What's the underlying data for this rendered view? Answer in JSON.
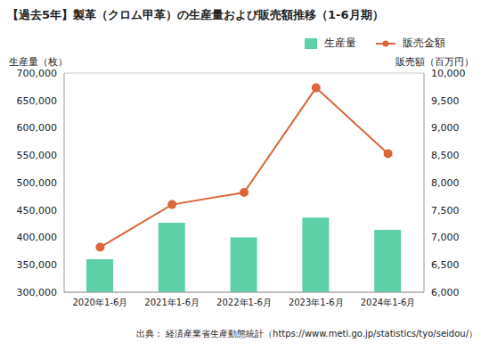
{
  "chart_data": {
    "type": "bar",
    "title": "【過去5年】製革（クロム甲革）の生産量および販売額推移（1-6月期）",
    "y_label": "生産量（枚）",
    "y2_label": "販売額（百万円）",
    "annotations": [
      "出典： 経済産業省生産動態統計（https://www.meti.go.jp/statistics/tyo/seidou/）"
    ],
    "categories": [
      "2020年1-6月",
      "2021年1-6月",
      "2022年1-6月",
      "2023年1-6月",
      "2024年1-6月"
    ],
    "series": [
      {
        "name": "生産量",
        "type": "bar",
        "color": "#5dd0a8",
        "values": [
          360000,
          427000,
          400000,
          436000,
          414000
        ]
      },
      {
        "name": "販売金額",
        "type": "line",
        "axis": "y2",
        "color": "#dc6539",
        "marker": "circle",
        "values": [
          6820,
          7600,
          7820,
          9730,
          8530
        ]
      }
    ],
    "ylim": [
      300000,
      700000
    ],
    "yticks": [
      {
        "value": 300000,
        "label": "300,000"
      },
      {
        "value": 350000,
        "label": "350,000"
      },
      {
        "value": 400000,
        "label": "400,000"
      },
      {
        "value": 450000,
        "label": "450,000"
      },
      {
        "value": 500000,
        "label": "500,000"
      },
      {
        "value": 550000,
        "label": "550,000"
      },
      {
        "value": 600000,
        "label": "600,000"
      },
      {
        "value": 650000,
        "label": "650,000"
      },
      {
        "value": 700000,
        "label": "700,000"
      }
    ],
    "y2lim": [
      6000,
      10000
    ],
    "y2ticks": [
      {
        "value": 6000,
        "label": "6,000"
      },
      {
        "value": 6500,
        "label": "6,500"
      },
      {
        "value": 7000,
        "label": "7,000"
      },
      {
        "value": 7500,
        "label": "7,500"
      },
      {
        "value": 8000,
        "label": "8,000"
      },
      {
        "value": 8500,
        "label": "8,500"
      },
      {
        "value": 9000,
        "label": "9,000"
      },
      {
        "value": 9500,
        "label": "9,500"
      },
      {
        "value": 10000,
        "label": "10,000"
      }
    ],
    "grid": true,
    "legend": "upper right"
  }
}
